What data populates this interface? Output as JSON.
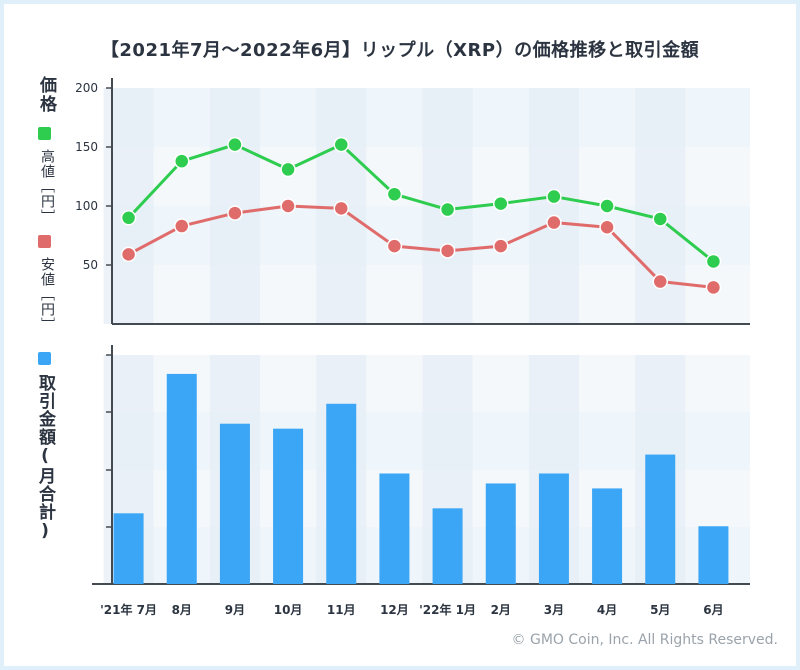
{
  "title": "【2021年7月〜2022年6月】リップル（XRP）の価格推移と取引金額",
  "labels": {
    "price_axis": "価格",
    "high_label": "高値［円］",
    "low_label": "安値［円］",
    "volume_label": "取引金額(月合計)"
  },
  "colors": {
    "high": "#2ecc4f",
    "low": "#e06b6b",
    "volume": "#3aa6f5",
    "axis": "#444a52"
  },
  "copyright": "© GMO Coin, Inc. All Rights Reserved.",
  "chart_data": [
    {
      "type": "line",
      "categories": [
        "'21年 7月",
        "8月",
        "9月",
        "10月",
        "11月",
        "12月",
        "'22年 1月",
        "2月",
        "3月",
        "4月",
        "5月",
        "6月"
      ],
      "ylim": [
        0,
        200
      ],
      "yticks": [
        50,
        100,
        150,
        200
      ],
      "series": [
        {
          "name": "高値［円］",
          "values": [
            90,
            138,
            152,
            131,
            152,
            110,
            97,
            102,
            108,
            100,
            89,
            53
          ]
        },
        {
          "name": "安値［円］",
          "values": [
            59,
            83,
            94,
            100,
            98,
            66,
            62,
            66,
            86,
            82,
            36,
            31
          ]
        }
      ],
      "grid": true
    },
    {
      "type": "bar",
      "categories": [
        "'21年 7月",
        "8月",
        "9月",
        "10月",
        "11月",
        "12月",
        "'22年 1月",
        "2月",
        "3月",
        "4月",
        "5月",
        "6月"
      ],
      "series": [
        {
          "name": "取引金額(月合計)",
          "values": [
            71,
            211,
            161,
            156,
            181,
            111,
            76,
            101,
            111,
            96,
            130,
            58
          ]
        }
      ],
      "ylim": [
        0,
        230
      ],
      "grid": true
    }
  ]
}
